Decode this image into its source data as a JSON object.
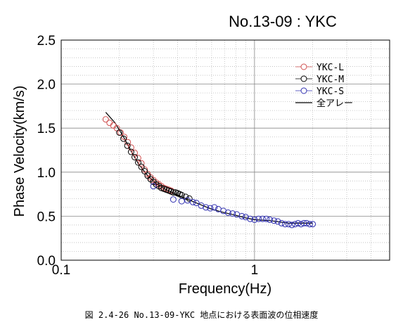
{
  "chart_data": {
    "type": "scatter",
    "title": "No.13-09 : YKC",
    "xlabel": "Frequency(Hz)",
    "ylabel": "Phase Velocity(km/s)",
    "xscale": "log",
    "xlim": [
      0.1,
      5
    ],
    "ylim": [
      0,
      2.5
    ],
    "x_ticks": [
      {
        "v": 0.1,
        "label": "0.1"
      },
      {
        "v": 1,
        "label": "1"
      }
    ],
    "y_ticks": [
      {
        "v": 0,
        "label": "0.0"
      },
      {
        "v": 0.5,
        "label": "0.5"
      },
      {
        "v": 1,
        "label": "1.0"
      },
      {
        "v": 1.5,
        "label": "1.5"
      },
      {
        "v": 2,
        "label": "2.0"
      },
      {
        "v": 2.5,
        "label": "2.5"
      }
    ],
    "grid": true,
    "legend_position": "top-right",
    "series": [
      {
        "name": "YKC-L",
        "color": "#d05050",
        "marker": "circle",
        "points": [
          [
            0.17,
            1.6
          ],
          [
            0.178,
            1.56
          ],
          [
            0.186,
            1.53
          ],
          [
            0.194,
            1.5
          ],
          [
            0.203,
            1.45
          ],
          [
            0.212,
            1.4
          ],
          [
            0.221,
            1.34
          ],
          [
            0.23,
            1.28
          ],
          [
            0.24,
            1.22
          ],
          [
            0.25,
            1.16
          ],
          [
            0.26,
            1.1
          ],
          [
            0.27,
            1.03
          ],
          [
            0.28,
            0.98
          ],
          [
            0.29,
            0.94
          ],
          [
            0.3,
            0.91
          ],
          [
            0.31,
            0.88
          ],
          [
            0.32,
            0.86
          ],
          [
            0.33,
            0.84
          ],
          [
            0.34,
            0.82
          ],
          [
            0.35,
            0.81
          ],
          [
            0.36,
            0.8
          ],
          [
            0.37,
            0.79
          ]
        ]
      },
      {
        "name": "YKC-M",
        "color": "#000000",
        "marker": "circle",
        "points": [
          [
            0.2,
            1.45
          ],
          [
            0.21,
            1.38
          ],
          [
            0.22,
            1.3
          ],
          [
            0.23,
            1.23
          ],
          [
            0.24,
            1.17
          ],
          [
            0.25,
            1.11
          ],
          [
            0.26,
            1.06
          ],
          [
            0.27,
            1.01
          ],
          [
            0.28,
            0.96
          ],
          [
            0.29,
            0.92
          ],
          [
            0.3,
            0.89
          ],
          [
            0.31,
            0.86
          ],
          [
            0.32,
            0.84
          ],
          [
            0.33,
            0.82
          ],
          [
            0.34,
            0.81
          ],
          [
            0.35,
            0.8
          ],
          [
            0.36,
            0.79
          ],
          [
            0.37,
            0.78
          ],
          [
            0.38,
            0.77
          ],
          [
            0.39,
            0.77
          ],
          [
            0.4,
            0.76
          ],
          [
            0.41,
            0.75
          ],
          [
            0.42,
            0.74
          ],
          [
            0.44,
            0.72
          ],
          [
            0.46,
            0.7
          ]
        ]
      },
      {
        "name": "YKC-S",
        "color": "#3030b0",
        "marker": "circle",
        "points": [
          [
            0.3,
            0.84
          ],
          [
            0.38,
            0.69
          ],
          [
            0.42,
            0.67
          ],
          [
            0.45,
            0.68
          ],
          [
            0.48,
            0.66
          ],
          [
            0.5,
            0.65
          ],
          [
            0.53,
            0.62
          ],
          [
            0.56,
            0.6
          ],
          [
            0.59,
            0.59
          ],
          [
            0.62,
            0.6
          ],
          [
            0.65,
            0.58
          ],
          [
            0.69,
            0.56
          ],
          [
            0.73,
            0.54
          ],
          [
            0.77,
            0.53
          ],
          [
            0.81,
            0.52
          ],
          [
            0.86,
            0.5
          ],
          [
            0.9,
            0.49
          ],
          [
            0.95,
            0.47
          ],
          [
            1.0,
            0.46
          ],
          [
            1.05,
            0.47
          ],
          [
            1.1,
            0.47
          ],
          [
            1.15,
            0.47
          ],
          [
            1.2,
            0.46
          ],
          [
            1.26,
            0.45
          ],
          [
            1.32,
            0.44
          ],
          [
            1.38,
            0.42
          ],
          [
            1.44,
            0.41
          ],
          [
            1.5,
            0.41
          ],
          [
            1.56,
            0.4
          ],
          [
            1.62,
            0.41
          ],
          [
            1.68,
            0.42
          ],
          [
            1.74,
            0.41
          ],
          [
            1.8,
            0.42
          ],
          [
            1.86,
            0.42
          ],
          [
            1.93,
            0.41
          ],
          [
            2.0,
            0.41
          ]
        ]
      },
      {
        "name": "全アレー",
        "color": "#000000",
        "marker": "line",
        "points": [
          [
            0.17,
            1.68
          ],
          [
            0.19,
            1.56
          ],
          [
            0.21,
            1.4
          ],
          [
            0.23,
            1.24
          ],
          [
            0.25,
            1.1
          ],
          [
            0.28,
            0.96
          ],
          [
            0.31,
            0.87
          ],
          [
            0.35,
            0.8
          ],
          [
            0.4,
            0.74
          ],
          [
            0.5,
            0.65
          ],
          [
            0.6,
            0.58
          ],
          [
            0.7,
            0.54
          ],
          [
            0.8,
            0.51
          ],
          [
            0.9,
            0.48
          ],
          [
            1.0,
            0.46
          ],
          [
            1.2,
            0.45
          ],
          [
            1.5,
            0.42
          ],
          [
            2.0,
            0.42
          ]
        ]
      }
    ]
  },
  "caption": "図 2.4-26  No.13-09-YKC 地点における表面波の位相速度"
}
